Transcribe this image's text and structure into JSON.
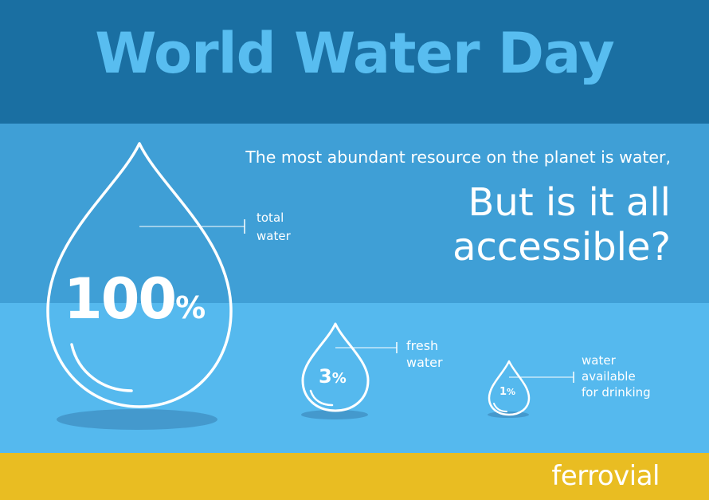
{
  "header": {
    "title": "World Water Day"
  },
  "statement": {
    "tagline": "The most abundant resource on the planet is water,",
    "question_lines": [
      "But is it all",
      "accessible?"
    ]
  },
  "drops": [
    {
      "value": "100",
      "unit": "%",
      "label_lines": [
        "total",
        "water"
      ],
      "share_percent": 100
    },
    {
      "value": "3",
      "unit": "%",
      "label_lines": [
        "fresh",
        "water"
      ],
      "share_percent": 3
    },
    {
      "value": "1",
      "unit": "%",
      "label_lines": [
        "water",
        "available",
        "for drinking"
      ],
      "share_percent": 1
    }
  ],
  "footer": {
    "brand": "ferrovial"
  },
  "colors": {
    "header_band": "#1a6fa2",
    "middle_band": "#3f9fd6",
    "lower_band": "#55b9ee",
    "footer_band": "#e9bd22",
    "title_text": "#58bdf0",
    "text": "#ffffff"
  }
}
